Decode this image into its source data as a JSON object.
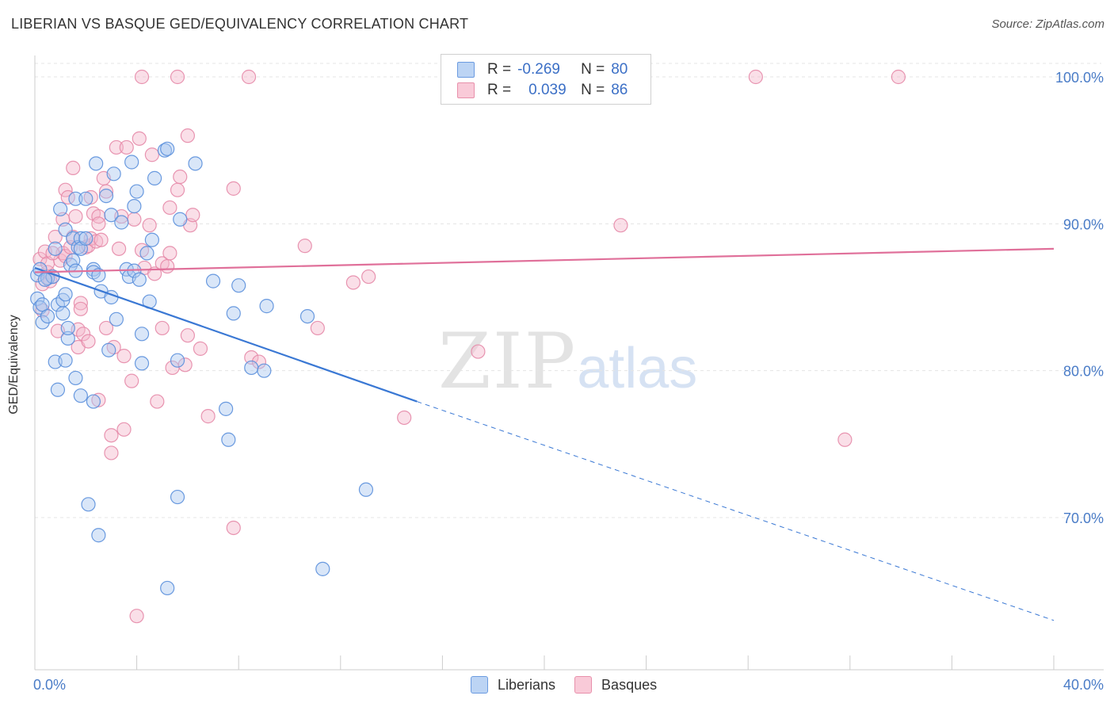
{
  "title": "LIBERIAN VS BASQUE GED/EQUIVALENCY CORRELATION CHART",
  "source": "Source: ZipAtlas.com",
  "watermark": {
    "zip": "ZIP",
    "atlas": "atlas"
  },
  "legend": {
    "rows": [
      {
        "r_label": "R =",
        "r_value": "-0.269",
        "n_label": "N =",
        "n_value": "80",
        "color": "#aac8f0"
      },
      {
        "r_label": "R =",
        "r_value": "0.039",
        "n_label": "N =",
        "n_value": "86",
        "color": "#f5b8cb"
      }
    ]
  },
  "bottom_legend": [
    "Liberians",
    "Basques"
  ],
  "chart_data": {
    "type": "scatter",
    "title": "LIBERIAN VS BASQUE GED/EQUIVALENCY CORRELATION CHART",
    "xlabel": "",
    "ylabel": "GED/Equivalency",
    "xlim": [
      0,
      40
    ],
    "ylim": [
      60.5,
      100.5
    ],
    "x_tick_labels": [
      "0.0%",
      "40.0%"
    ],
    "y_ticks": [
      70,
      80,
      90,
      100
    ],
    "y_tick_labels": [
      "70.0%",
      "80.0%",
      "90.0%",
      "100.0%"
    ],
    "grid": true,
    "legend_position": "top-center",
    "colors": {
      "liberians": "#3a78d4",
      "basques": "#e0709a",
      "liberians_fill": "#aac8f0",
      "basques_fill": "#f5b8cb"
    },
    "series": [
      {
        "name": "Liberians",
        "regression": {
          "x": [
            0,
            15
          ],
          "y": [
            87.0,
            77.9
          ],
          "dashed_to": [
            40,
            63.0
          ]
        },
        "points": [
          [
            0.1,
            86.5
          ],
          [
            0.1,
            84.9
          ],
          [
            0.2,
            84.3
          ],
          [
            0.2,
            86.9
          ],
          [
            0.3,
            84.5
          ],
          [
            0.3,
            83.3
          ],
          [
            0.5,
            86.3
          ],
          [
            0.5,
            83.7
          ],
          [
            0.7,
            86.4
          ],
          [
            0.8,
            88.3
          ],
          [
            0.8,
            80.6
          ],
          [
            0.9,
            78.7
          ],
          [
            0.9,
            84.5
          ],
          [
            1.0,
            91.0
          ],
          [
            1.1,
            84.8
          ],
          [
            1.1,
            83.9
          ],
          [
            1.2,
            89.6
          ],
          [
            1.2,
            80.7
          ],
          [
            1.3,
            82.2
          ],
          [
            1.3,
            82.9
          ],
          [
            1.4,
            87.2
          ],
          [
            1.5,
            87.5
          ],
          [
            1.5,
            89.0
          ],
          [
            1.6,
            79.5
          ],
          [
            1.6,
            91.7
          ],
          [
            1.7,
            88.4
          ],
          [
            1.8,
            89.0
          ],
          [
            1.8,
            88.3
          ],
          [
            1.8,
            78.3
          ],
          [
            2.0,
            91.7
          ],
          [
            2.0,
            89.0
          ],
          [
            2.1,
            70.9
          ],
          [
            2.3,
            86.9
          ],
          [
            2.3,
            86.7
          ],
          [
            2.3,
            77.9
          ],
          [
            2.4,
            94.1
          ],
          [
            2.5,
            86.5
          ],
          [
            2.5,
            68.8
          ],
          [
            2.6,
            85.4
          ],
          [
            2.8,
            91.9
          ],
          [
            2.9,
            81.4
          ],
          [
            3.0,
            85.0
          ],
          [
            3.0,
            90.6
          ],
          [
            3.1,
            93.4
          ],
          [
            3.2,
            83.5
          ],
          [
            3.4,
            90.1
          ],
          [
            3.6,
            86.9
          ],
          [
            3.7,
            86.4
          ],
          [
            3.8,
            94.2
          ],
          [
            3.9,
            91.2
          ],
          [
            3.9,
            86.8
          ],
          [
            4.0,
            92.2
          ],
          [
            4.1,
            86.2
          ],
          [
            4.2,
            82.5
          ],
          [
            4.2,
            80.5
          ],
          [
            4.4,
            88.0
          ],
          [
            4.5,
            84.7
          ],
          [
            4.6,
            88.9
          ],
          [
            4.7,
            93.1
          ],
          [
            5.1,
            95.0
          ],
          [
            5.2,
            95.1
          ],
          [
            5.2,
            65.2
          ],
          [
            5.6,
            80.7
          ],
          [
            5.6,
            71.4
          ],
          [
            5.7,
            90.3
          ],
          [
            6.3,
            94.1
          ],
          [
            7.0,
            86.1
          ],
          [
            7.5,
            77.4
          ],
          [
            7.6,
            75.3
          ],
          [
            7.8,
            83.9
          ],
          [
            8.0,
            85.8
          ],
          [
            8.5,
            80.2
          ],
          [
            9.0,
            80.0
          ],
          [
            9.1,
            84.4
          ],
          [
            10.7,
            83.7
          ],
          [
            11.3,
            66.5
          ],
          [
            13.0,
            71.9
          ],
          [
            0.4,
            86.2
          ],
          [
            1.2,
            85.2
          ],
          [
            1.6,
            86.8
          ]
        ]
      },
      {
        "name": "Basques",
        "regression": {
          "x": [
            0,
            40
          ],
          "y": [
            86.7,
            88.3
          ]
        },
        "points": [
          [
            0.2,
            87.6
          ],
          [
            0.3,
            85.9
          ],
          [
            0.3,
            84.1
          ],
          [
            0.4,
            88.1
          ],
          [
            0.5,
            86.7
          ],
          [
            0.5,
            87.3
          ],
          [
            0.6,
            86.1
          ],
          [
            0.7,
            86.4
          ],
          [
            0.8,
            89.1
          ],
          [
            0.9,
            82.7
          ],
          [
            1.0,
            87.5
          ],
          [
            1.1,
            90.3
          ],
          [
            1.1,
            88.0
          ],
          [
            1.2,
            87.8
          ],
          [
            1.2,
            92.3
          ],
          [
            1.3,
            91.8
          ],
          [
            1.4,
            88.4
          ],
          [
            1.5,
            93.8
          ],
          [
            1.5,
            89.1
          ],
          [
            1.6,
            90.5
          ],
          [
            1.7,
            82.8
          ],
          [
            1.7,
            81.6
          ],
          [
            1.8,
            84.6
          ],
          [
            1.8,
            84.2
          ],
          [
            1.9,
            82.5
          ],
          [
            2.0,
            88.4
          ],
          [
            2.1,
            88.5
          ],
          [
            2.1,
            82.0
          ],
          [
            2.2,
            89.0
          ],
          [
            2.2,
            91.8
          ],
          [
            2.3,
            90.7
          ],
          [
            2.4,
            88.8
          ],
          [
            2.5,
            90.5
          ],
          [
            2.5,
            78.0
          ],
          [
            2.6,
            88.9
          ],
          [
            2.7,
            93.1
          ],
          [
            2.8,
            92.2
          ],
          [
            2.8,
            82.9
          ],
          [
            3.0,
            75.6
          ],
          [
            3.0,
            74.4
          ],
          [
            3.1,
            81.6
          ],
          [
            3.2,
            95.2
          ],
          [
            3.3,
            88.3
          ],
          [
            3.4,
            90.5
          ],
          [
            3.5,
            76.0
          ],
          [
            3.6,
            95.2
          ],
          [
            3.8,
            79.3
          ],
          [
            3.9,
            90.3
          ],
          [
            4.0,
            63.3
          ],
          [
            4.1,
            95.8
          ],
          [
            4.2,
            88.2
          ],
          [
            4.3,
            87.0
          ],
          [
            4.5,
            89.9
          ],
          [
            4.6,
            94.7
          ],
          [
            4.7,
            86.6
          ],
          [
            4.8,
            77.9
          ],
          [
            5.0,
            87.3
          ],
          [
            5.0,
            82.9
          ],
          [
            5.2,
            87.1
          ],
          [
            5.3,
            88.0
          ],
          [
            5.3,
            91.1
          ],
          [
            5.4,
            80.2
          ],
          [
            5.6,
            92.3
          ],
          [
            5.7,
            93.2
          ],
          [
            5.9,
            80.4
          ],
          [
            6.0,
            82.4
          ],
          [
            6.0,
            96.0
          ],
          [
            6.1,
            89.9
          ],
          [
            6.2,
            90.6
          ],
          [
            6.5,
            81.5
          ],
          [
            6.8,
            76.9
          ],
          [
            7.8,
            92.4
          ],
          [
            7.8,
            69.3
          ],
          [
            8.5,
            80.9
          ],
          [
            8.8,
            80.6
          ],
          [
            10.6,
            88.5
          ],
          [
            11.1,
            82.9
          ],
          [
            12.5,
            86.0
          ],
          [
            13.1,
            86.4
          ],
          [
            14.5,
            76.8
          ],
          [
            17.4,
            81.3
          ],
          [
            23.0,
            89.9
          ],
          [
            31.8,
            75.3
          ],
          [
            0.7,
            88.0
          ],
          [
            2.5,
            90.0
          ],
          [
            3.5,
            81.0
          ]
        ]
      },
      {
        "name": "Basques-top-row",
        "points": [
          [
            4.2,
            100.0
          ],
          [
            5.6,
            100.0
          ],
          [
            8.4,
            100.0
          ],
          [
            28.3,
            100.0
          ],
          [
            33.9,
            100.0
          ]
        ]
      }
    ]
  }
}
